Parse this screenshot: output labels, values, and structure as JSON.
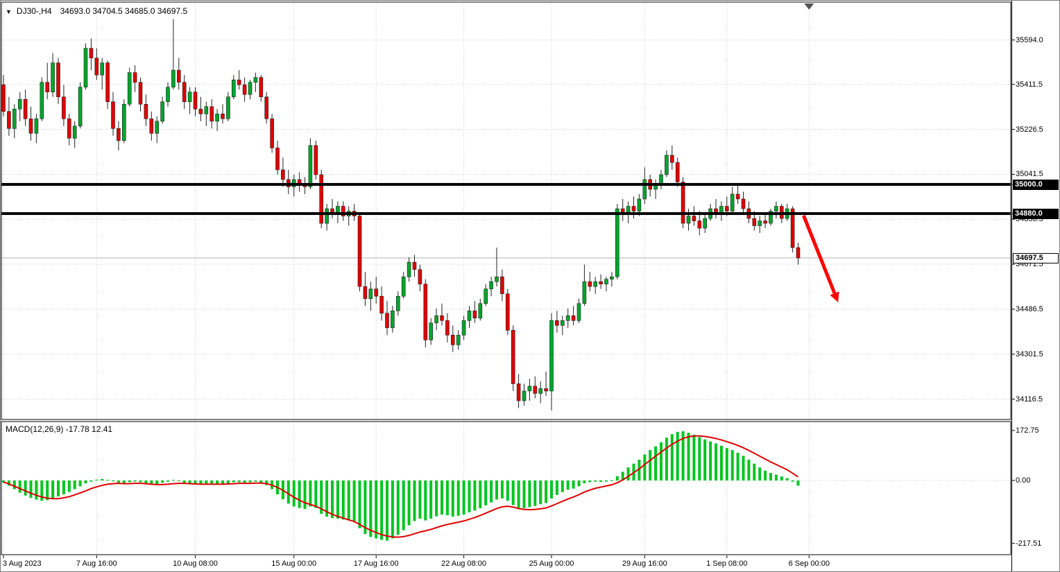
{
  "header": {
    "collapse_icon": "▼",
    "symbol": "DJ30-,H4",
    "ohlc": "34693.0 34704.5 34685.0 34697.5"
  },
  "colors": {
    "background": "#ffffff",
    "pane_border": "#000000",
    "grid": "#c9c9c9",
    "bull": "#00a52c",
    "bear": "#e00000",
    "candle_outline": "#222222",
    "level_line": "#000000",
    "histogram": "#00c51f",
    "signal_line": "#e00000",
    "arrow": "#ff0000",
    "current_price_line": "#b0b0b0",
    "axis_text": "#000000",
    "shift_marker": "#555555"
  },
  "price_axis": {
    "gridlines": [
      {
        "price": 35594.0,
        "label": "35594.0"
      },
      {
        "price": 35411.5,
        "label": "35411.5"
      },
      {
        "price": 35226.5,
        "label": "35226.5"
      },
      {
        "price": 35041.5,
        "label": "35041.5"
      },
      {
        "price": 34856.5,
        "label": "34856.5"
      },
      {
        "price": 34671.5,
        "label": "34671.5"
      },
      {
        "price": 34486.5,
        "label": "34486.5"
      },
      {
        "price": 34301.5,
        "label": "34301.5"
      },
      {
        "price": 34116.5,
        "label": "34116.5"
      }
    ]
  },
  "levels": [
    {
      "price": 35000.0,
      "label": "35000.0"
    },
    {
      "price": 34880.0,
      "label": "34880.0"
    }
  ],
  "current_price": {
    "price": 34697.5,
    "label": "34697.5"
  },
  "time_axis": [
    {
      "bar": 0,
      "label": "3 Aug 2023",
      "align": "left"
    },
    {
      "bar": 17,
      "label": "7 Aug 16:00"
    },
    {
      "bar": 35,
      "label": "10 Aug 08:00"
    },
    {
      "bar": 53,
      "label": "15 Aug 00:00"
    },
    {
      "bar": 68,
      "label": "17 Aug 16:00"
    },
    {
      "bar": 84,
      "label": "22 Aug 08:00"
    },
    {
      "bar": 100,
      "label": "25 Aug 00:00"
    },
    {
      "bar": 117,
      "label": "29 Aug 16:00"
    },
    {
      "bar": 132,
      "label": "1 Sep 08:00"
    },
    {
      "bar": 147,
      "label": "6 Sep 00:00"
    }
  ],
  "macd_panel": {
    "label": "MACD(12,26,9) -17.78 12.41",
    "axis": [
      {
        "value": 172.75,
        "label": "172.75"
      },
      {
        "value": 0,
        "label": "0.00"
      },
      {
        "value": -217.51,
        "label": "-217.51"
      }
    ]
  },
  "chart_data": {
    "type": "candlestick",
    "title": "DJ30-,H4",
    "timeframe": "H4",
    "last_ohlc": {
      "open": 34693.0,
      "high": 34704.5,
      "low": 34685.0,
      "close": 34697.5
    },
    "horizontal_levels": [
      35000.0,
      34880.0
    ],
    "price_range": {
      "min": 34033,
      "max": 35750
    },
    "visible_bar_slots": 184,
    "candles": [
      [
        35410,
        35450,
        35280,
        35300
      ],
      [
        35300,
        35360,
        35200,
        35230
      ],
      [
        35230,
        35330,
        35190,
        35310
      ],
      [
        35310,
        35380,
        35260,
        35350
      ],
      [
        35350,
        35390,
        35240,
        35270
      ],
      [
        35270,
        35320,
        35180,
        35210
      ],
      [
        35210,
        35290,
        35170,
        35270
      ],
      [
        35270,
        35440,
        35260,
        35420
      ],
      [
        35420,
        35500,
        35350,
        35380
      ],
      [
        35380,
        35540,
        35360,
        35500
      ],
      [
        35500,
        35520,
        35330,
        35360
      ],
      [
        35360,
        35410,
        35240,
        35270
      ],
      [
        35270,
        35290,
        35160,
        35190
      ],
      [
        35190,
        35260,
        35150,
        35240
      ],
      [
        35240,
        35420,
        35230,
        35400
      ],
      [
        35400,
        35580,
        35390,
        35560
      ],
      [
        35560,
        35600,
        35470,
        35520
      ],
      [
        35520,
        35560,
        35430,
        35450
      ],
      [
        35450,
        35520,
        35390,
        35500
      ],
      [
        35500,
        35510,
        35310,
        35340
      ],
      [
        35340,
        35380,
        35200,
        35230
      ],
      [
        35230,
        35260,
        35140,
        35180
      ],
      [
        35180,
        35350,
        35170,
        35330
      ],
      [
        35330,
        35480,
        35320,
        35460
      ],
      [
        35460,
        35490,
        35380,
        35420
      ],
      [
        35420,
        35440,
        35300,
        35330
      ],
      [
        35330,
        35370,
        35240,
        35270
      ],
      [
        35270,
        35300,
        35180,
        35210
      ],
      [
        35210,
        35280,
        35170,
        35260
      ],
      [
        35260,
        35360,
        35250,
        35340
      ],
      [
        35340,
        35420,
        35320,
        35400
      ],
      [
        35400,
        35680,
        35390,
        35470
      ],
      [
        35470,
        35520,
        35390,
        35420
      ],
      [
        35420,
        35450,
        35310,
        35340
      ],
      [
        35340,
        35400,
        35290,
        35380
      ],
      [
        35380,
        35400,
        35280,
        35310
      ],
      [
        35310,
        35360,
        35260,
        35290
      ],
      [
        35290,
        35340,
        35240,
        35320
      ],
      [
        35320,
        35350,
        35230,
        35260
      ],
      [
        35260,
        35310,
        35220,
        35290
      ],
      [
        35290,
        35330,
        35250,
        35270
      ],
      [
        35270,
        35380,
        35260,
        35360
      ],
      [
        35360,
        35450,
        35350,
        35430
      ],
      [
        35430,
        35470,
        35390,
        35410
      ],
      [
        35410,
        35440,
        35340,
        35370
      ],
      [
        35370,
        35430,
        35350,
        35420
      ],
      [
        35420,
        35460,
        35380,
        35440
      ],
      [
        35440,
        35450,
        35340,
        35360
      ],
      [
        35360,
        35380,
        35250,
        35270
      ],
      [
        35270,
        35290,
        35130,
        35150
      ],
      [
        35150,
        35180,
        35040,
        35060
      ],
      [
        35060,
        35110,
        34990,
        35020
      ],
      [
        35020,
        35060,
        34960,
        34990
      ],
      [
        34990,
        35040,
        34950,
        35020
      ],
      [
        35020,
        35050,
        34970,
        35000
      ],
      [
        35000,
        35030,
        34960,
        34990
      ],
      [
        34990,
        35190,
        34980,
        35160
      ],
      [
        35160,
        35180,
        35020,
        35040
      ],
      [
        35040,
        35060,
        34820,
        34840
      ],
      [
        34840,
        34920,
        34810,
        34900
      ],
      [
        34900,
        34940,
        34860,
        34880
      ],
      [
        34880,
        34930,
        34840,
        34910
      ],
      [
        34910,
        34930,
        34850,
        34870
      ],
      [
        34870,
        34910,
        34830,
        34890
      ],
      [
        34890,
        34920,
        34850,
        34870
      ],
      [
        34870,
        34880,
        34560,
        34580
      ],
      [
        34580,
        34640,
        34500,
        34530
      ],
      [
        34530,
        34600,
        34480,
        34570
      ],
      [
        34570,
        34620,
        34510,
        34540
      ],
      [
        34540,
        34580,
        34440,
        34470
      ],
      [
        34470,
        34520,
        34380,
        34410
      ],
      [
        34410,
        34500,
        34390,
        34480
      ],
      [
        34480,
        34560,
        34460,
        34540
      ],
      [
        34540,
        34640,
        34530,
        34620
      ],
      [
        34620,
        34700,
        34600,
        34680
      ],
      [
        34680,
        34710,
        34620,
        34650
      ],
      [
        34650,
        34670,
        34560,
        34590
      ],
      [
        34590,
        34610,
        34330,
        34360
      ],
      [
        34360,
        34450,
        34340,
        34430
      ],
      [
        34430,
        34490,
        34400,
        34460
      ],
      [
        34460,
        34510,
        34420,
        34440
      ],
      [
        34440,
        34470,
        34350,
        34380
      ],
      [
        34380,
        34420,
        34310,
        34340
      ],
      [
        34340,
        34400,
        34320,
        34380
      ],
      [
        34380,
        34460,
        34360,
        34440
      ],
      [
        34440,
        34500,
        34410,
        34480
      ],
      [
        34480,
        34520,
        34430,
        34450
      ],
      [
        34450,
        34530,
        34440,
        34510
      ],
      [
        34510,
        34590,
        34500,
        34570
      ],
      [
        34570,
        34620,
        34540,
        34600
      ],
      [
        34600,
        34740,
        34580,
        34620
      ],
      [
        34620,
        34650,
        34520,
        34550
      ],
      [
        34550,
        34570,
        34380,
        34400
      ],
      [
        34400,
        34420,
        34150,
        34180
      ],
      [
        34180,
        34220,
        34080,
        34110
      ],
      [
        34110,
        34180,
        34090,
        34150
      ],
      [
        34150,
        34200,
        34110,
        34170
      ],
      [
        34170,
        34210,
        34120,
        34140
      ],
      [
        34140,
        34190,
        34100,
        34160
      ],
      [
        34160,
        34230,
        34130,
        34150
      ],
      [
        34150,
        34470,
        34070,
        34440
      ],
      [
        34440,
        34480,
        34390,
        34420
      ],
      [
        34420,
        34460,
        34380,
        34440
      ],
      [
        34440,
        34490,
        34410,
        34460
      ],
      [
        34460,
        34500,
        34420,
        34440
      ],
      [
        34440,
        34530,
        34430,
        34510
      ],
      [
        34510,
        34670,
        34500,
        34600
      ],
      [
        34600,
        34640,
        34560,
        34580
      ],
      [
        34580,
        34620,
        34550,
        34600
      ],
      [
        34600,
        34630,
        34570,
        34590
      ],
      [
        34590,
        34620,
        34560,
        34610
      ],
      [
        34610,
        34640,
        34580,
        34620
      ],
      [
        34620,
        34920,
        34610,
        34900
      ],
      [
        34900,
        34940,
        34850,
        34880
      ],
      [
        34880,
        34930,
        34840,
        34910
      ],
      [
        34910,
        34950,
        34860,
        34890
      ],
      [
        34890,
        34960,
        34870,
        34940
      ],
      [
        34940,
        35070,
        34920,
        35020
      ],
      [
        35020,
        35040,
        34950,
        34980
      ],
      [
        34980,
        35020,
        34940,
        35000
      ],
      [
        35000,
        35060,
        34980,
        35040
      ],
      [
        35040,
        35140,
        35030,
        35120
      ],
      [
        35120,
        35160,
        35060,
        35090
      ],
      [
        35090,
        35110,
        34990,
        35010
      ],
      [
        35010,
        35030,
        34820,
        34840
      ],
      [
        34840,
        34900,
        34810,
        34870
      ],
      [
        34870,
        34910,
        34830,
        34850
      ],
      [
        34850,
        34890,
        34790,
        34820
      ],
      [
        34820,
        34880,
        34800,
        34860
      ],
      [
        34860,
        34920,
        34850,
        34900
      ],
      [
        34900,
        34940,
        34860,
        34880
      ],
      [
        34880,
        34930,
        34850,
        34910
      ],
      [
        34910,
        34950,
        34870,
        34890
      ],
      [
        34890,
        34990,
        34880,
        34960
      ],
      [
        34960,
        35000,
        34920,
        34940
      ],
      [
        34940,
        34970,
        34880,
        34900
      ],
      [
        34900,
        34930,
        34840,
        34860
      ],
      [
        34860,
        34890,
        34810,
        34830
      ],
      [
        34830,
        34870,
        34800,
        34850
      ],
      [
        34850,
        34880,
        34820,
        34840
      ],
      [
        34840,
        34900,
        34830,
        34890
      ],
      [
        34890,
        34930,
        34860,
        34910
      ],
      [
        34910,
        34920,
        34840,
        34860
      ],
      [
        34860,
        34920,
        34850,
        34900
      ],
      [
        34900,
        34910,
        34720,
        34740
      ],
      [
        34740,
        34760,
        34670,
        34697.5
      ]
    ],
    "macd": {
      "type": "bar+line",
      "params": "12,26,9",
      "last_values": {
        "macd": -17.78,
        "signal": 12.41
      },
      "range": {
        "min": -256.4,
        "max": 203.6
      },
      "histogram": [
        -8,
        -18,
        -30,
        -42,
        -52,
        -60,
        -66,
        -70,
        -68,
        -62,
        -55,
        -48,
        -40,
        -30,
        -20,
        -10,
        -4,
        3,
        5,
        2,
        -3,
        -8,
        -10,
        -6,
        -4,
        -6,
        -10,
        -14,
        -12,
        -8,
        -4,
        2,
        -2,
        -8,
        -10,
        -12,
        -14,
        -12,
        -14,
        -12,
        -14,
        -10,
        -6,
        -6,
        -8,
        -6,
        -4,
        -8,
        -16,
        -30,
        -48,
        -65,
        -80,
        -90,
        -95,
        -98,
        -90,
        -95,
        -115,
        -125,
        -130,
        -132,
        -135,
        -138,
        -142,
        -165,
        -185,
        -195,
        -200,
        -205,
        -208,
        -200,
        -188,
        -172,
        -155,
        -140,
        -132,
        -138,
        -132,
        -124,
        -118,
        -120,
        -125,
        -122,
        -118,
        -110,
        -104,
        -96,
        -86,
        -76,
        -66,
        -62,
        -70,
        -85,
        -95,
        -96,
        -92,
        -88,
        -82,
        -78,
        -62,
        -50,
        -40,
        -32,
        -28,
        -20,
        -10,
        -6,
        -4,
        -5,
        -4,
        -2,
        15,
        30,
        45,
        58,
        72,
        90,
        105,
        118,
        132,
        148,
        160,
        168,
        170,
        165,
        158,
        150,
        142,
        135,
        128,
        120,
        112,
        105,
        96,
        85,
        72,
        58,
        45,
        34,
        26,
        20,
        14,
        8,
        -4,
        -17.78
      ],
      "signal": [
        -5,
        -12,
        -20,
        -28,
        -36,
        -44,
        -51,
        -57,
        -61,
        -63,
        -63,
        -60,
        -56,
        -50,
        -43,
        -36,
        -28,
        -22,
        -17,
        -13,
        -11,
        -10,
        -11,
        -11,
        -10,
        -10,
        -11,
        -13,
        -14,
        -14,
        -13,
        -11,
        -10,
        -10,
        -11,
        -12,
        -13,
        -13,
        -13,
        -13,
        -13,
        -12,
        -11,
        -10,
        -10,
        -10,
        -9,
        -9,
        -11,
        -16,
        -24,
        -34,
        -46,
        -58,
        -68,
        -77,
        -83,
        -89,
        -98,
        -108,
        -117,
        -124,
        -130,
        -136,
        -142,
        -152,
        -163,
        -172,
        -180,
        -187,
        -192,
        -195,
        -196,
        -194,
        -190,
        -184,
        -178,
        -174,
        -169,
        -163,
        -157,
        -152,
        -148,
        -144,
        -140,
        -134,
        -128,
        -121,
        -113,
        -105,
        -97,
        -91,
        -89,
        -92,
        -97,
        -100,
        -101,
        -100,
        -98,
        -95,
        -88,
        -80,
        -72,
        -64,
        -57,
        -49,
        -40,
        -33,
        -27,
        -23,
        -19,
        -15,
        -8,
        2,
        14,
        27,
        40,
        55,
        70,
        84,
        98,
        112,
        125,
        136,
        145,
        151,
        154,
        154,
        152,
        149,
        145,
        140,
        134,
        128,
        121,
        113,
        104,
        94,
        84,
        74,
        64,
        55,
        46,
        37,
        25,
        12.41
      ]
    },
    "arrow": {
      "from_bar": 146,
      "from_price": 34872,
      "to_bar": 152.3,
      "to_price": 34515
    },
    "shift_marker_bar": 147
  }
}
